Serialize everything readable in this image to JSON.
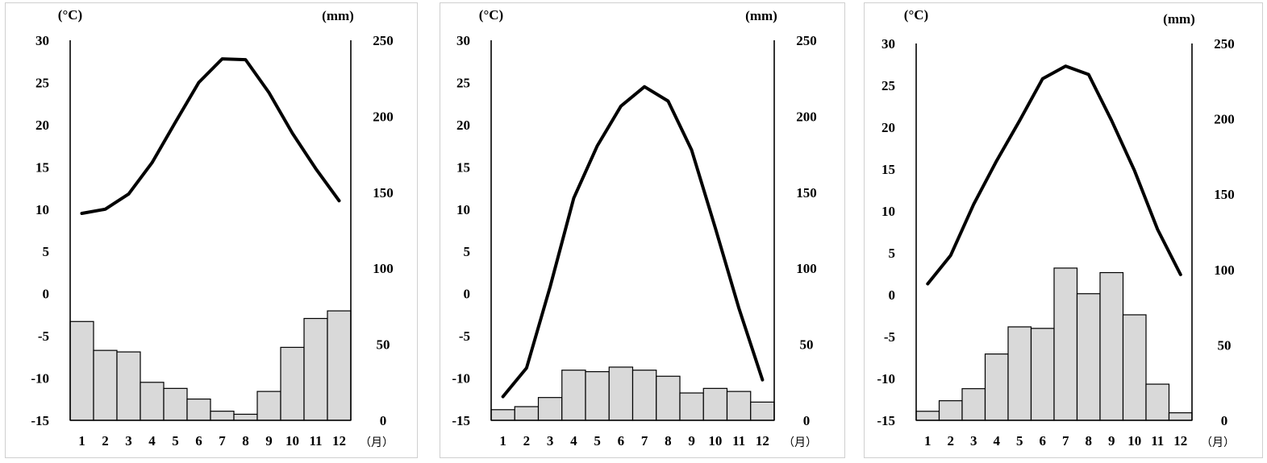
{
  "chart_data": [
    {
      "type": "bar+line",
      "categories": [
        "1",
        "2",
        "3",
        "4",
        "5",
        "6",
        "7",
        "8",
        "9",
        "10",
        "11",
        "12"
      ],
      "x_unit": "（月）",
      "left_axis": {
        "unit": "(°C)",
        "ylim": [
          -15,
          30
        ],
        "ticks": [
          "30",
          "25",
          "20",
          "15",
          "10",
          "5",
          "0",
          "-5",
          "-10",
          "-15"
        ]
      },
      "right_axis": {
        "unit": "(mm)",
        "ylim": [
          0,
          250
        ],
        "ticks": [
          "250",
          "200",
          "150",
          "100",
          "50",
          "0"
        ]
      },
      "temperature": [
        9.5,
        10.0,
        11.8,
        15.5,
        20.3,
        25.0,
        27.8,
        27.7,
        23.8,
        19.0,
        14.8,
        11.0
      ],
      "precipitation": [
        65,
        46,
        45,
        25,
        21,
        14,
        6,
        4,
        19,
        48,
        67,
        72
      ],
      "bar_color": "#d9d9d9",
      "line_color": "#000000"
    },
    {
      "type": "bar+line",
      "categories": [
        "1",
        "2",
        "3",
        "4",
        "5",
        "6",
        "7",
        "8",
        "9",
        "10",
        "11",
        "12"
      ],
      "x_unit": "（月）",
      "left_axis": {
        "unit": "(°C)",
        "ylim": [
          -15,
          30
        ],
        "ticks": [
          "30",
          "25",
          "20",
          "15",
          "10",
          "5",
          "0",
          "-5",
          "-10",
          "-15"
        ]
      },
      "right_axis": {
        "unit": "(mm)",
        "ylim": [
          0,
          250
        ],
        "ticks": [
          "250",
          "200",
          "150",
          "100",
          "50",
          "0"
        ]
      },
      "temperature": [
        -12.2,
        -8.8,
        0.8,
        11.3,
        17.5,
        22.2,
        24.5,
        22.8,
        17.0,
        7.8,
        -1.7,
        -10.2
      ],
      "precipitation": [
        7,
        9,
        15,
        33,
        32,
        35,
        33,
        29,
        18,
        21,
        19,
        12
      ],
      "bar_color": "#d9d9d9",
      "line_color": "#000000"
    },
    {
      "type": "bar+line",
      "categories": [
        "1",
        "2",
        "3",
        "4",
        "5",
        "6",
        "7",
        "8",
        "9",
        "10",
        "11",
        "12"
      ],
      "x_unit": "（月）",
      "left_axis": {
        "unit": "(°C)",
        "ylim": [
          -15,
          30
        ],
        "ticks": [
          "30",
          "25",
          "20",
          "15",
          "10",
          "5",
          "0",
          "-5",
          "-10",
          "-15"
        ]
      },
      "right_axis": {
        "unit": "(mm)",
        "ylim": [
          0,
          250
        ],
        "ticks": [
          "250",
          "200",
          "150",
          "100",
          "50",
          "0"
        ]
      },
      "temperature": [
        1.3,
        4.7,
        10.8,
        16.0,
        20.8,
        25.8,
        27.3,
        26.3,
        20.8,
        14.8,
        7.8,
        2.4
      ],
      "precipitation": [
        6,
        13,
        21,
        44,
        62,
        61,
        101,
        84,
        98,
        70,
        24,
        5
      ],
      "bar_color": "#d9d9d9",
      "line_color": "#000000"
    }
  ]
}
